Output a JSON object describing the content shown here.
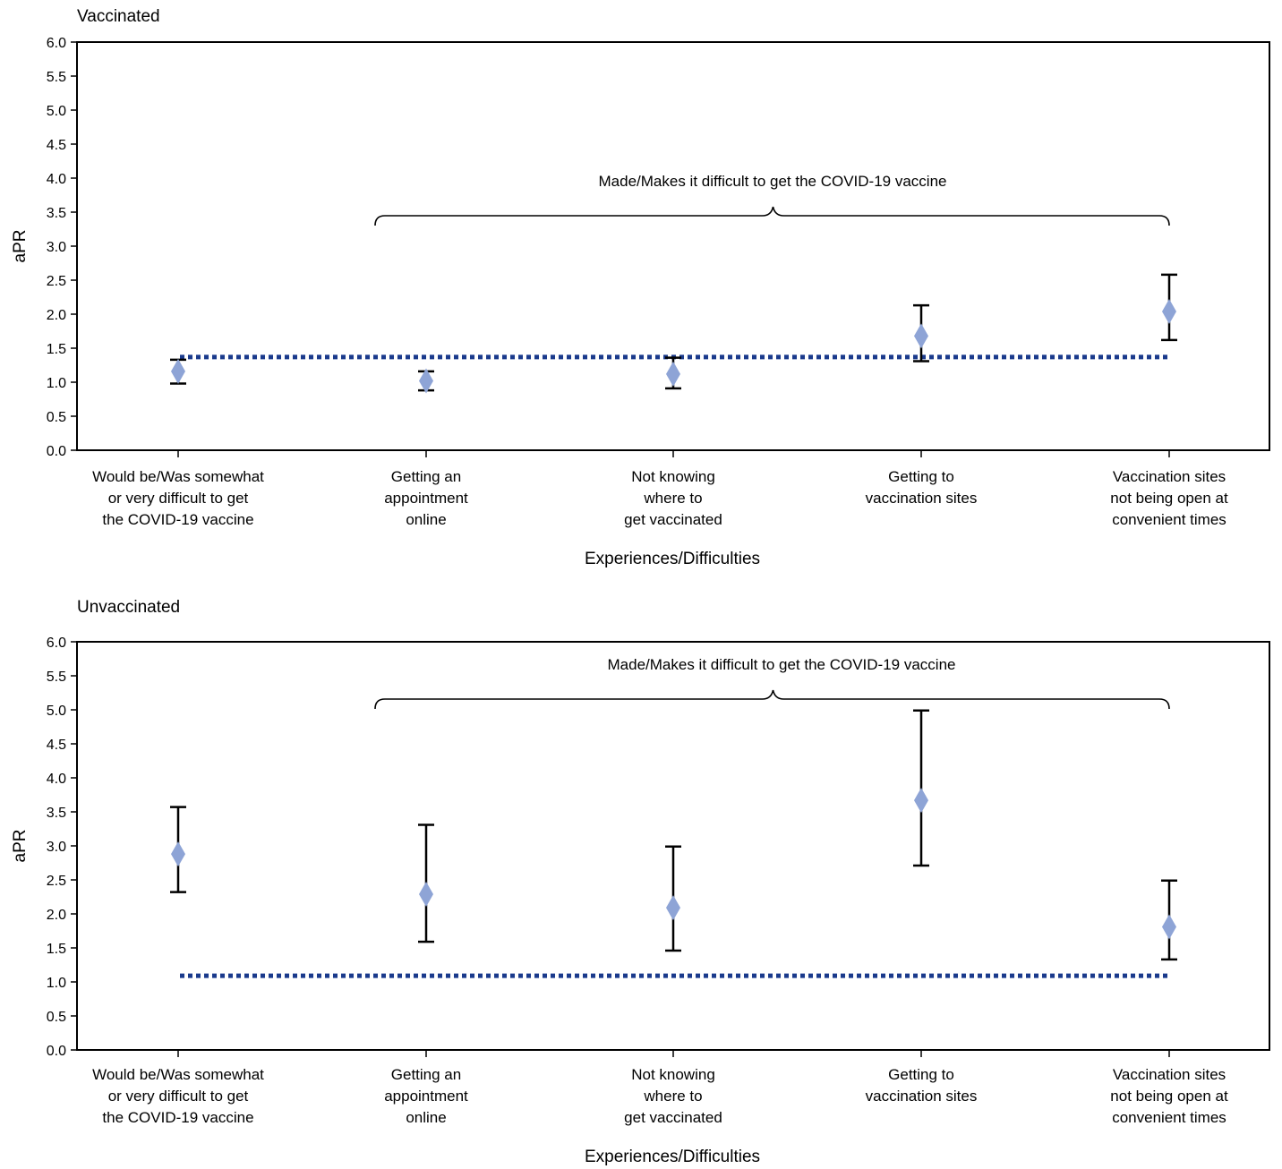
{
  "colors": {
    "marker": "#8ea4d6",
    "reference_line": "#1a3a8c",
    "error_bar": "#000000",
    "axis": "#000000"
  },
  "chart_data": [
    {
      "type": "scatter",
      "title": "Vaccinated",
      "xlabel": "Experiences/Difficulties",
      "ylabel": "aPR",
      "ylim": [
        0,
        6
      ],
      "yticks": [
        "0.0",
        "0.5",
        "1.0",
        "1.5",
        "2.0",
        "2.5",
        "3.0",
        "3.5",
        "4.0",
        "4.5",
        "5.0",
        "5.5",
        "6.0"
      ],
      "categories": [
        "Would be/Was somewhat\nor very difficult to get\nthe COVID-19 vaccine",
        "Getting an\nappointment\nonline",
        "Not knowing\nwhere to\nget vaccinated",
        "Getting to\nvaccination sites",
        "Vaccination sites\nnot being open at\nconvenient times"
      ],
      "series": [
        {
          "values": [
            1.16,
            1.02,
            1.12,
            1.68,
            2.04
          ],
          "ci_low": [
            0.98,
            0.88,
            0.91,
            1.31,
            1.62
          ],
          "ci_high": [
            1.33,
            1.16,
            1.36,
            2.13,
            2.58
          ]
        }
      ],
      "reference_line": 1.37,
      "bracket": {
        "label": "Made/Makes it difficult to get the COVID-19 vaccine",
        "from_category": 1,
        "to_category": 4
      },
      "grid": false
    },
    {
      "type": "scatter",
      "title": "Unvaccinated",
      "xlabel": "Experiences/Difficulties",
      "ylabel": "aPR",
      "ylim": [
        0,
        6
      ],
      "yticks": [
        "0.0",
        "0.5",
        "1.0",
        "1.5",
        "2.0",
        "2.5",
        "3.0",
        "3.5",
        "4.0",
        "4.5",
        "5.0",
        "5.5",
        "6.0"
      ],
      "categories": [
        "Would be/Was somewhat\nor very difficult to get\nthe COVID-19 vaccine",
        "Getting an\nappointment\nonline",
        "Not knowing\nwhere to\nget vaccinated",
        "Getting to\nvaccination sites",
        "Vaccination sites\nnot being open at\nconvenient times"
      ],
      "series": [
        {
          "values": [
            2.88,
            2.29,
            2.09,
            3.67,
            1.81
          ],
          "ci_low": [
            2.32,
            1.59,
            1.46,
            2.71,
            1.33
          ],
          "ci_high": [
            3.57,
            3.31,
            2.99,
            4.99,
            2.49
          ]
        }
      ],
      "reference_line": 1.09,
      "bracket": {
        "label": "Made/Makes it difficult to get the COVID-19 vaccine",
        "from_category": 1,
        "to_category": 4
      },
      "grid": false
    }
  ]
}
